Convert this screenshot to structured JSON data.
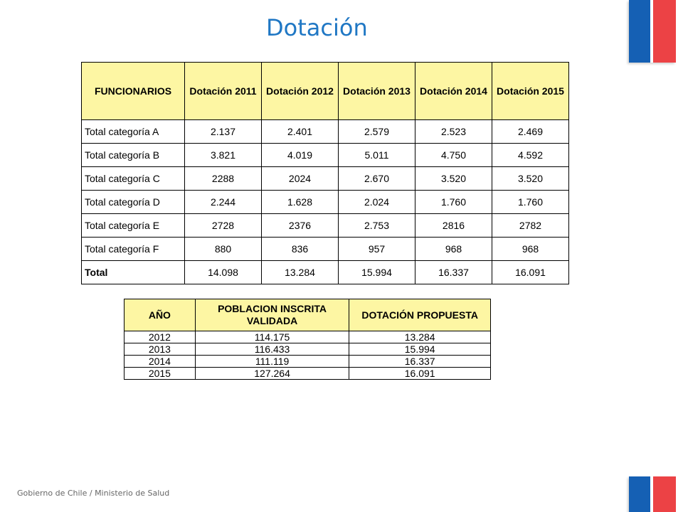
{
  "title": "Dotación",
  "footer": "Gobierno de Chile / Ministerio de Salud",
  "colors": {
    "title": "#1f77c4",
    "header_bg": "#fdf6a3",
    "flag_blue": "#1560b4",
    "flag_red": "#ec4245"
  },
  "table1": {
    "headers": [
      "FUNCIONARIOS",
      "Dotación 2011",
      "Dotación 2012",
      "Dotación 2013",
      "Dotación 2014",
      "Dotación 2015"
    ],
    "rows": [
      [
        "Total categoría A",
        "2.137",
        "2.401",
        "2.579",
        "2.523",
        "2.469"
      ],
      [
        "Total categoría B",
        "3.821",
        "4.019",
        "5.011",
        "4.750",
        "4.592"
      ],
      [
        "Total categoría C",
        "2288",
        "2024",
        "2.670",
        "3.520",
        "3.520"
      ],
      [
        "Total categoría D",
        "2.244",
        "1.628",
        "2.024",
        "1.760",
        "1.760"
      ],
      [
        "Total categoría E",
        "2728",
        "2376",
        "2.753",
        "2816",
        "2782"
      ],
      [
        "Total categoría F",
        "880",
        "836",
        "957",
        "968",
        "968"
      ],
      [
        "Total",
        "14.098",
        "13.284",
        "15.994",
        "16.337",
        "16.091"
      ]
    ]
  },
  "table2": {
    "headers": [
      "AÑO",
      "POBLACION INSCRITA VALIDADA",
      "DOTACIÓN PROPUESTA"
    ],
    "rows": [
      [
        "2012",
        "114.175",
        "13.284"
      ],
      [
        "2013",
        "116.433",
        "15.994"
      ],
      [
        "2014",
        "111.119",
        "16.337"
      ],
      [
        "2015",
        "127.264",
        "16.091"
      ]
    ]
  }
}
